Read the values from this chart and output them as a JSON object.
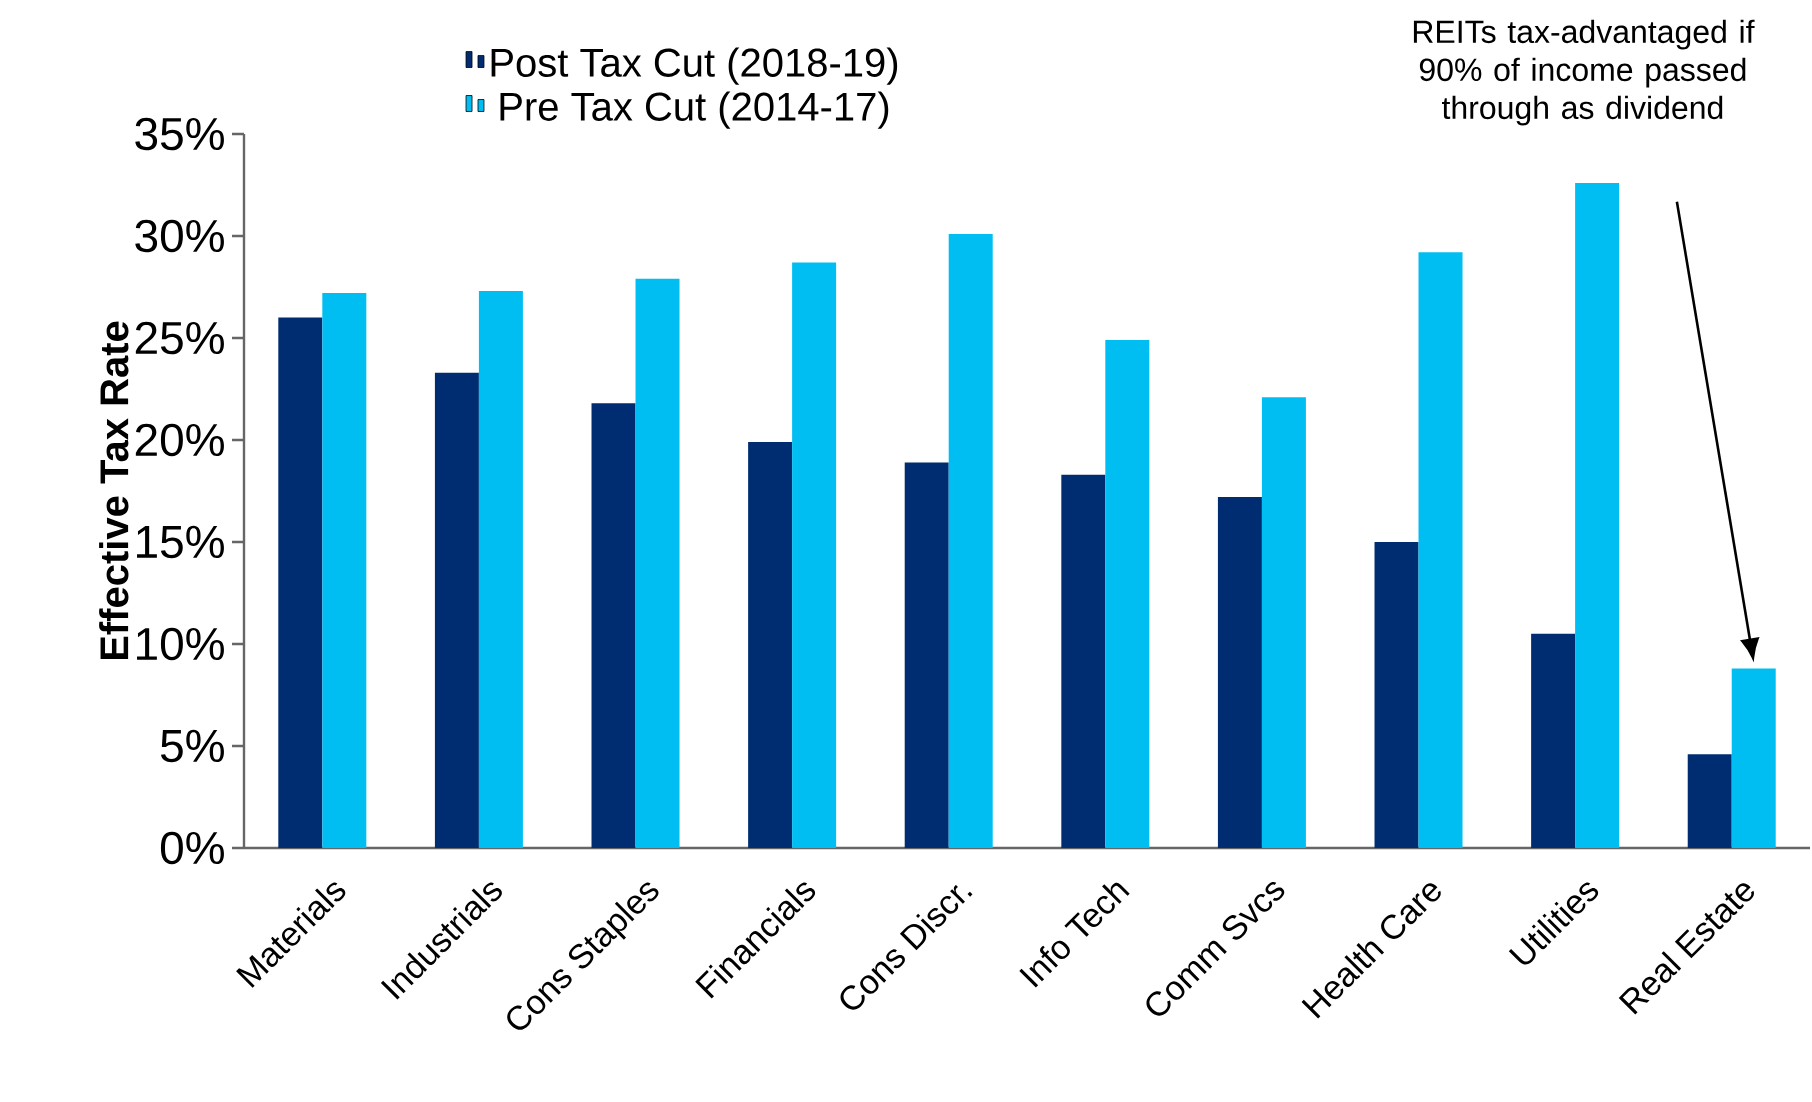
{
  "chart_data": {
    "type": "bar",
    "ylabel": "Effective Tax Rate",
    "categories": [
      "Materials",
      "Industrials",
      "Cons Staples",
      "Financials",
      "Cons Discr.",
      "Info Tech",
      "Comm Svcs",
      "Health Care",
      "Utilities",
      "Real Estate"
    ],
    "series": [
      {
        "name": "Post Tax Cut (2018-19)",
        "color": "#002d72",
        "values": [
          26.0,
          23.3,
          21.8,
          19.9,
          18.9,
          18.3,
          17.2,
          15.0,
          10.5,
          4.6
        ]
      },
      {
        "name": "Pre Tax Cut (2014-17)",
        "color": "#00bef2",
        "values": [
          27.2,
          27.3,
          27.9,
          28.7,
          30.1,
          24.9,
          22.1,
          29.2,
          32.6,
          8.8
        ]
      }
    ],
    "ylim": [
      0,
      35
    ],
    "yticks": [
      {
        "value": 0,
        "label": "0%"
      },
      {
        "value": 5,
        "label": "5%"
      },
      {
        "value": 10,
        "label": "10%"
      },
      {
        "value": 15,
        "label": "15%"
      },
      {
        "value": 20,
        "label": "20%"
      },
      {
        "value": 25,
        "label": "25%"
      },
      {
        "value": 30,
        "label": "30%"
      },
      {
        "value": 35,
        "label": "35%"
      }
    ],
    "grid": false,
    "legend": "top left",
    "annotations": [
      "REITs tax-advantaged if 90% of income passed through as dividend"
    ]
  }
}
